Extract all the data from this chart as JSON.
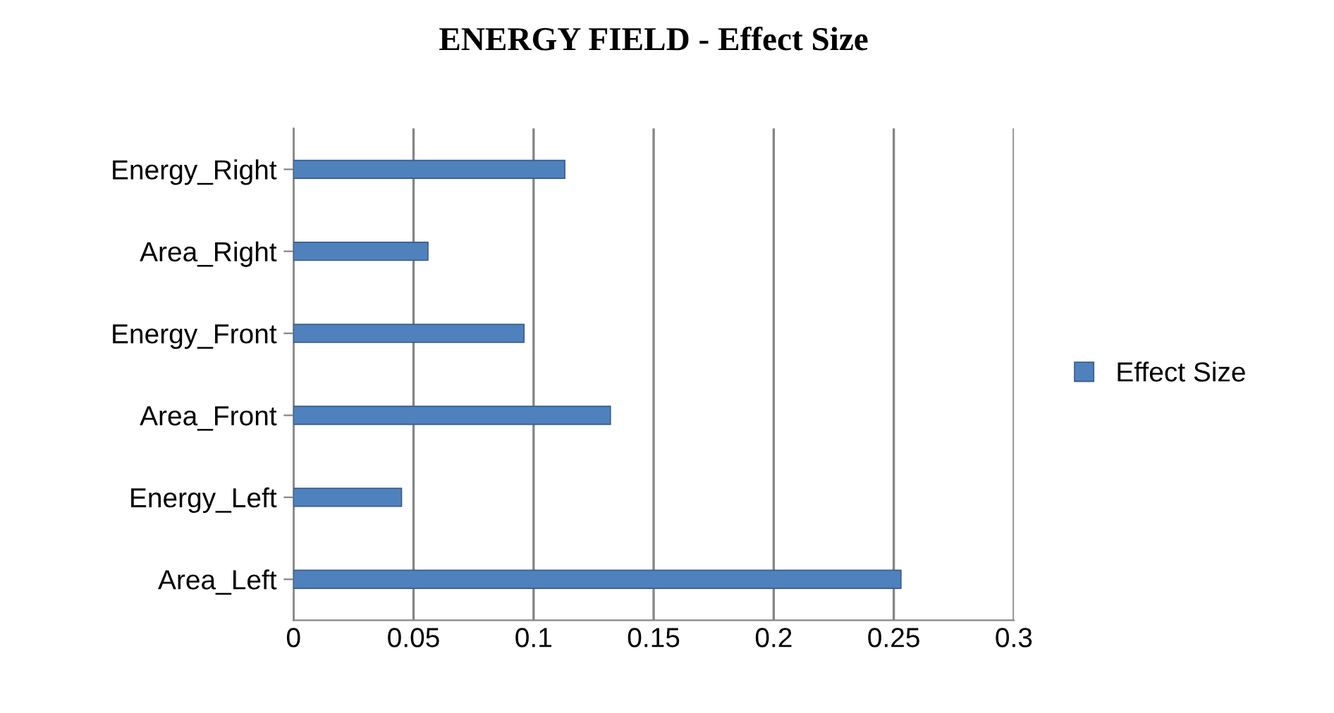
{
  "chart_data": {
    "type": "bar",
    "orientation": "horizontal",
    "title": "ENERGY FIELD - Effect Size",
    "categories": [
      "Energy_Right",
      "Area_Right",
      "Energy_Front",
      "Area_Front",
      "Energy_Left",
      "Area_Left"
    ],
    "series": [
      {
        "name": "Effect Size",
        "color": "#4f81bd",
        "values": [
          0.113,
          0.056,
          0.096,
          0.132,
          0.045,
          0.253
        ]
      }
    ],
    "xlim": [
      0,
      0.3
    ],
    "xticks": [
      0,
      0.05,
      0.1,
      0.15,
      0.2,
      0.25,
      0.3
    ],
    "grid": "x",
    "legend": "right"
  }
}
